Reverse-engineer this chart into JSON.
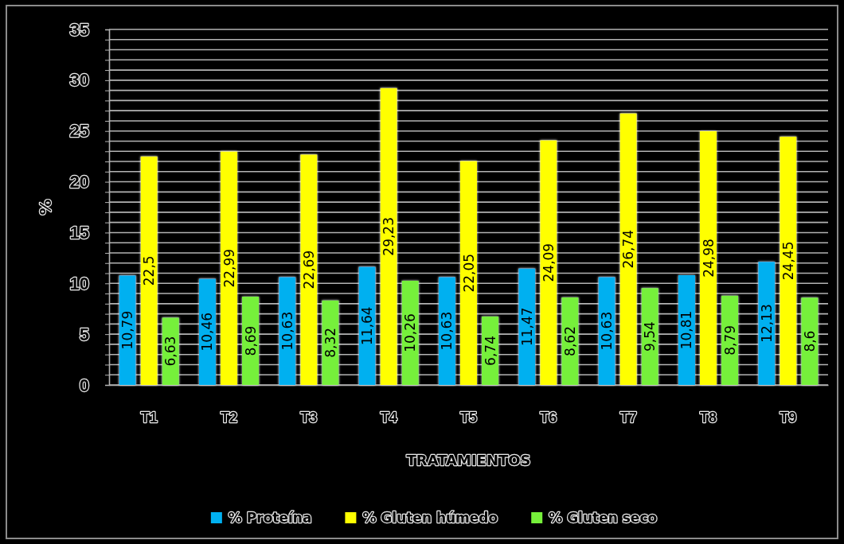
{
  "chart_data": {
    "type": "bar",
    "ylabel": "%",
    "xlabel": "TRATAMIENTOS",
    "legend": "bottom",
    "grid": "y",
    "categories": [
      "T1",
      "T2",
      "T3",
      "T4",
      "T5",
      "T6",
      "T7",
      "T8",
      "T9"
    ],
    "series": [
      {
        "name": "% Proteína",
        "color": "#00b0f0",
        "values": [
          10.79,
          10.46,
          10.63,
          11.64,
          10.63,
          11.47,
          10.63,
          10.81,
          12.13
        ],
        "value_labels": [
          "10,79",
          "10,46",
          "10,63",
          "11,64",
          "10,63",
          "11,47",
          "10,63",
          "10,81",
          "12,13"
        ]
      },
      {
        "name": "% Gluten húmedo",
        "color": "#ffff00",
        "values": [
          22.5,
          22.99,
          22.69,
          29.23,
          22.05,
          24.09,
          26.74,
          24.98,
          24.45
        ],
        "value_labels": [
          "22,5",
          "22,99",
          "22,69",
          "29,23",
          "22,05",
          "24,09",
          "26,74",
          "24,98",
          "24,45"
        ]
      },
      {
        "name": "% Gluten seco",
        "color": "#76f03a",
        "values": [
          6.63,
          8.69,
          8.32,
          10.26,
          6.74,
          8.62,
          9.54,
          8.79,
          8.6
        ],
        "value_labels": [
          "6,63",
          "8,69",
          "8,32",
          "10,26",
          "6,74",
          "8,62",
          "9,54",
          "8,79",
          "8,6"
        ]
      }
    ],
    "ylim": [
      0,
      35
    ],
    "yticks": [
      0,
      {
        "value": 1,
        "label": null
      },
      {
        "value": 2,
        "label": null
      },
      {
        "value": 3,
        "label": null
      },
      {
        "value": 4,
        "label": null
      },
      5,
      {
        "value": 6,
        "label": null
      },
      {
        "value": 7,
        "label": null
      },
      {
        "value": 8,
        "label": null
      },
      {
        "value": 9,
        "label": null
      },
      10,
      {
        "value": 11,
        "label": null
      },
      {
        "value": 12,
        "label": null
      },
      {
        "value": 13,
        "label": null
      },
      {
        "value": 14,
        "label": null
      },
      15,
      {
        "value": 16,
        "label": null
      },
      {
        "value": 17,
        "label": null
      },
      {
        "value": 18,
        "label": null
      },
      {
        "value": 19,
        "label": null
      },
      20,
      {
        "value": 21,
        "label": null
      },
      {
        "value": 22,
        "label": null
      },
      {
        "value": 23,
        "label": null
      },
      {
        "value": 24,
        "label": null
      },
      25,
      {
        "value": 26,
        "label": null
      },
      {
        "value": 27,
        "label": null
      },
      {
        "value": 28,
        "label": null
      },
      {
        "value": 29,
        "label": null
      },
      30,
      {
        "value": 31,
        "label": null
      },
      {
        "value": 32,
        "label": null
      },
      {
        "value": 33,
        "label": null
      },
      {
        "value": 34,
        "label": null
      },
      35
    ]
  }
}
